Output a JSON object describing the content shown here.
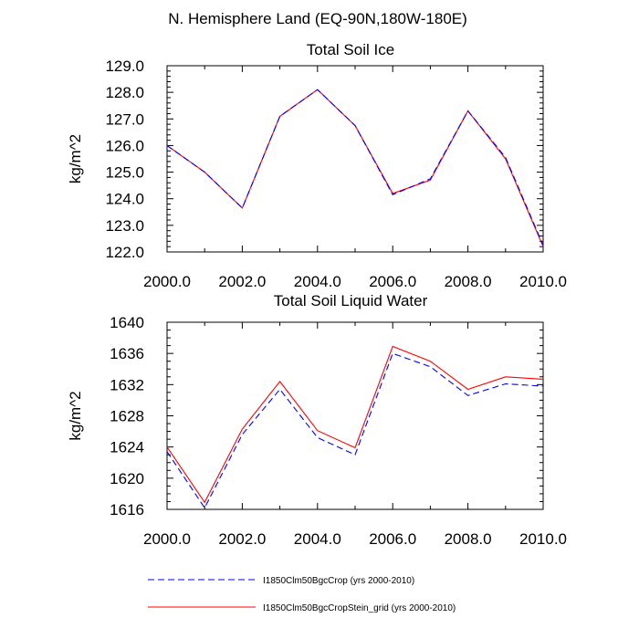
{
  "title": "N. Hemisphere Land (EQ-90N,180W-180E)",
  "legend": [
    {
      "label": "I1850Clm50BgcCrop (yrs 2000-2010)",
      "color": "#0000ff",
      "style": "dashed"
    },
    {
      "label": "I1850Clm50BgcCropStein_grid (yrs 2000-2010)",
      "color": "#ff0000",
      "style": "solid"
    }
  ],
  "chart_data": [
    {
      "type": "line",
      "title": "Total Soil Ice",
      "ylabel": "kg/m^2",
      "xlabel": "",
      "xlim": [
        2000,
        2010
      ],
      "ylim": [
        122,
        129
      ],
      "x_ticks": [
        2000,
        2002,
        2004,
        2006,
        2008,
        2010
      ],
      "x_tick_labels": [
        "2000.0",
        "2002.0",
        "2004.0",
        "2006.0",
        "2008.0",
        "2010.0"
      ],
      "y_ticks": [
        122,
        123,
        124,
        125,
        126,
        127,
        128,
        129
      ],
      "y_tick_labels": [
        "122.0",
        "123.0",
        "124.0",
        "125.0",
        "126.0",
        "127.0",
        "128.0",
        "129.0"
      ],
      "x": [
        2000,
        2001,
        2002,
        2003,
        2004,
        2005,
        2006,
        2007,
        2008,
        2009,
        2010
      ],
      "series": [
        {
          "name": "I1850Clm50BgcCrop (yrs 2000-2010)",
          "color": "#0000ff",
          "style": "dashed",
          "values": [
            126.0,
            125.0,
            123.65,
            127.1,
            128.1,
            126.75,
            124.15,
            124.75,
            127.3,
            125.55,
            122.25
          ]
        },
        {
          "name": "I1850Clm50BgcCropStein_grid (yrs 2000-2010)",
          "color": "#ff0000",
          "style": "solid",
          "values": [
            126.0,
            125.0,
            123.65,
            127.1,
            128.1,
            126.75,
            124.2,
            124.7,
            127.3,
            125.5,
            122.2
          ]
        }
      ]
    },
    {
      "type": "line",
      "title": "Total Soil Liquid Water",
      "ylabel": "kg/m^2",
      "xlabel": "",
      "xlim": [
        2000,
        2010
      ],
      "ylim": [
        1616,
        1640
      ],
      "x_ticks": [
        2000,
        2002,
        2004,
        2006,
        2008,
        2010
      ],
      "x_tick_labels": [
        "2000.0",
        "2002.0",
        "2004.0",
        "2006.0",
        "2008.0",
        "2010.0"
      ],
      "y_ticks": [
        1616,
        1620,
        1624,
        1628,
        1632,
        1636,
        1640
      ],
      "y_tick_labels": [
        "1616",
        "1620",
        "1624",
        "1628",
        "1632",
        "1636",
        "1640"
      ],
      "x": [
        2000,
        2001,
        2002,
        2003,
        2004,
        2005,
        2006,
        2007,
        2008,
        2009,
        2010
      ],
      "series": [
        {
          "name": "I1850Clm50BgcCrop (yrs 2000-2010)",
          "color": "#0000ff",
          "style": "dashed",
          "values": [
            1623.4,
            1616.2,
            1625.6,
            1631.4,
            1625.2,
            1623.0,
            1636.0,
            1634.3,
            1630.6,
            1632.1,
            1631.8
          ]
        },
        {
          "name": "I1850Clm50BgcCropStein_grid (yrs 2000-2010)",
          "color": "#ff0000",
          "style": "solid",
          "values": [
            1624.0,
            1616.9,
            1626.3,
            1632.4,
            1626.1,
            1623.9,
            1636.9,
            1635.0,
            1631.4,
            1633.0,
            1632.7
          ]
        }
      ]
    }
  ]
}
